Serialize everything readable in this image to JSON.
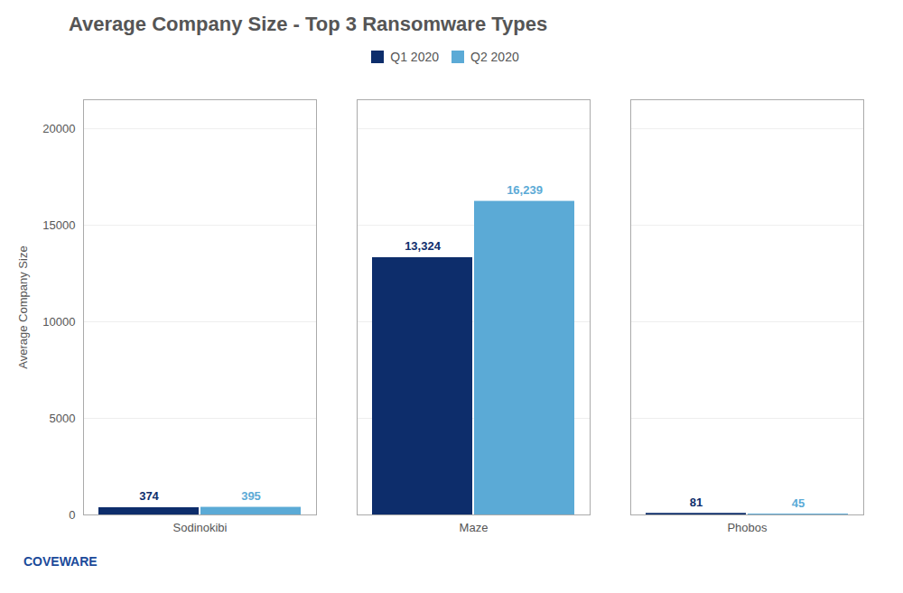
{
  "chart_data": {
    "type": "bar",
    "title": "Average Company Size - Top 3 Ransomware Types",
    "categories": [
      "Sodinokibi",
      "Maze",
      "Phobos"
    ],
    "series": [
      {
        "name": "Q1 2020",
        "color": "#0d2d6b",
        "values": [
          374,
          13324,
          81
        ],
        "value_labels": [
          "374",
          "13,324",
          "81"
        ]
      },
      {
        "name": "Q2 2020",
        "color": "#5baad6",
        "values": [
          395,
          16239,
          45
        ],
        "value_labels": [
          "395",
          "16,239",
          "45"
        ]
      }
    ],
    "ylabel": "Average Company Size",
    "ylim": [
      0,
      21500
    ],
    "yticks": [
      0,
      5000,
      10000,
      15000,
      20000
    ],
    "grid": true,
    "legend": "top",
    "data_labels": true,
    "annotations": [
      "COVEWARE"
    ]
  }
}
